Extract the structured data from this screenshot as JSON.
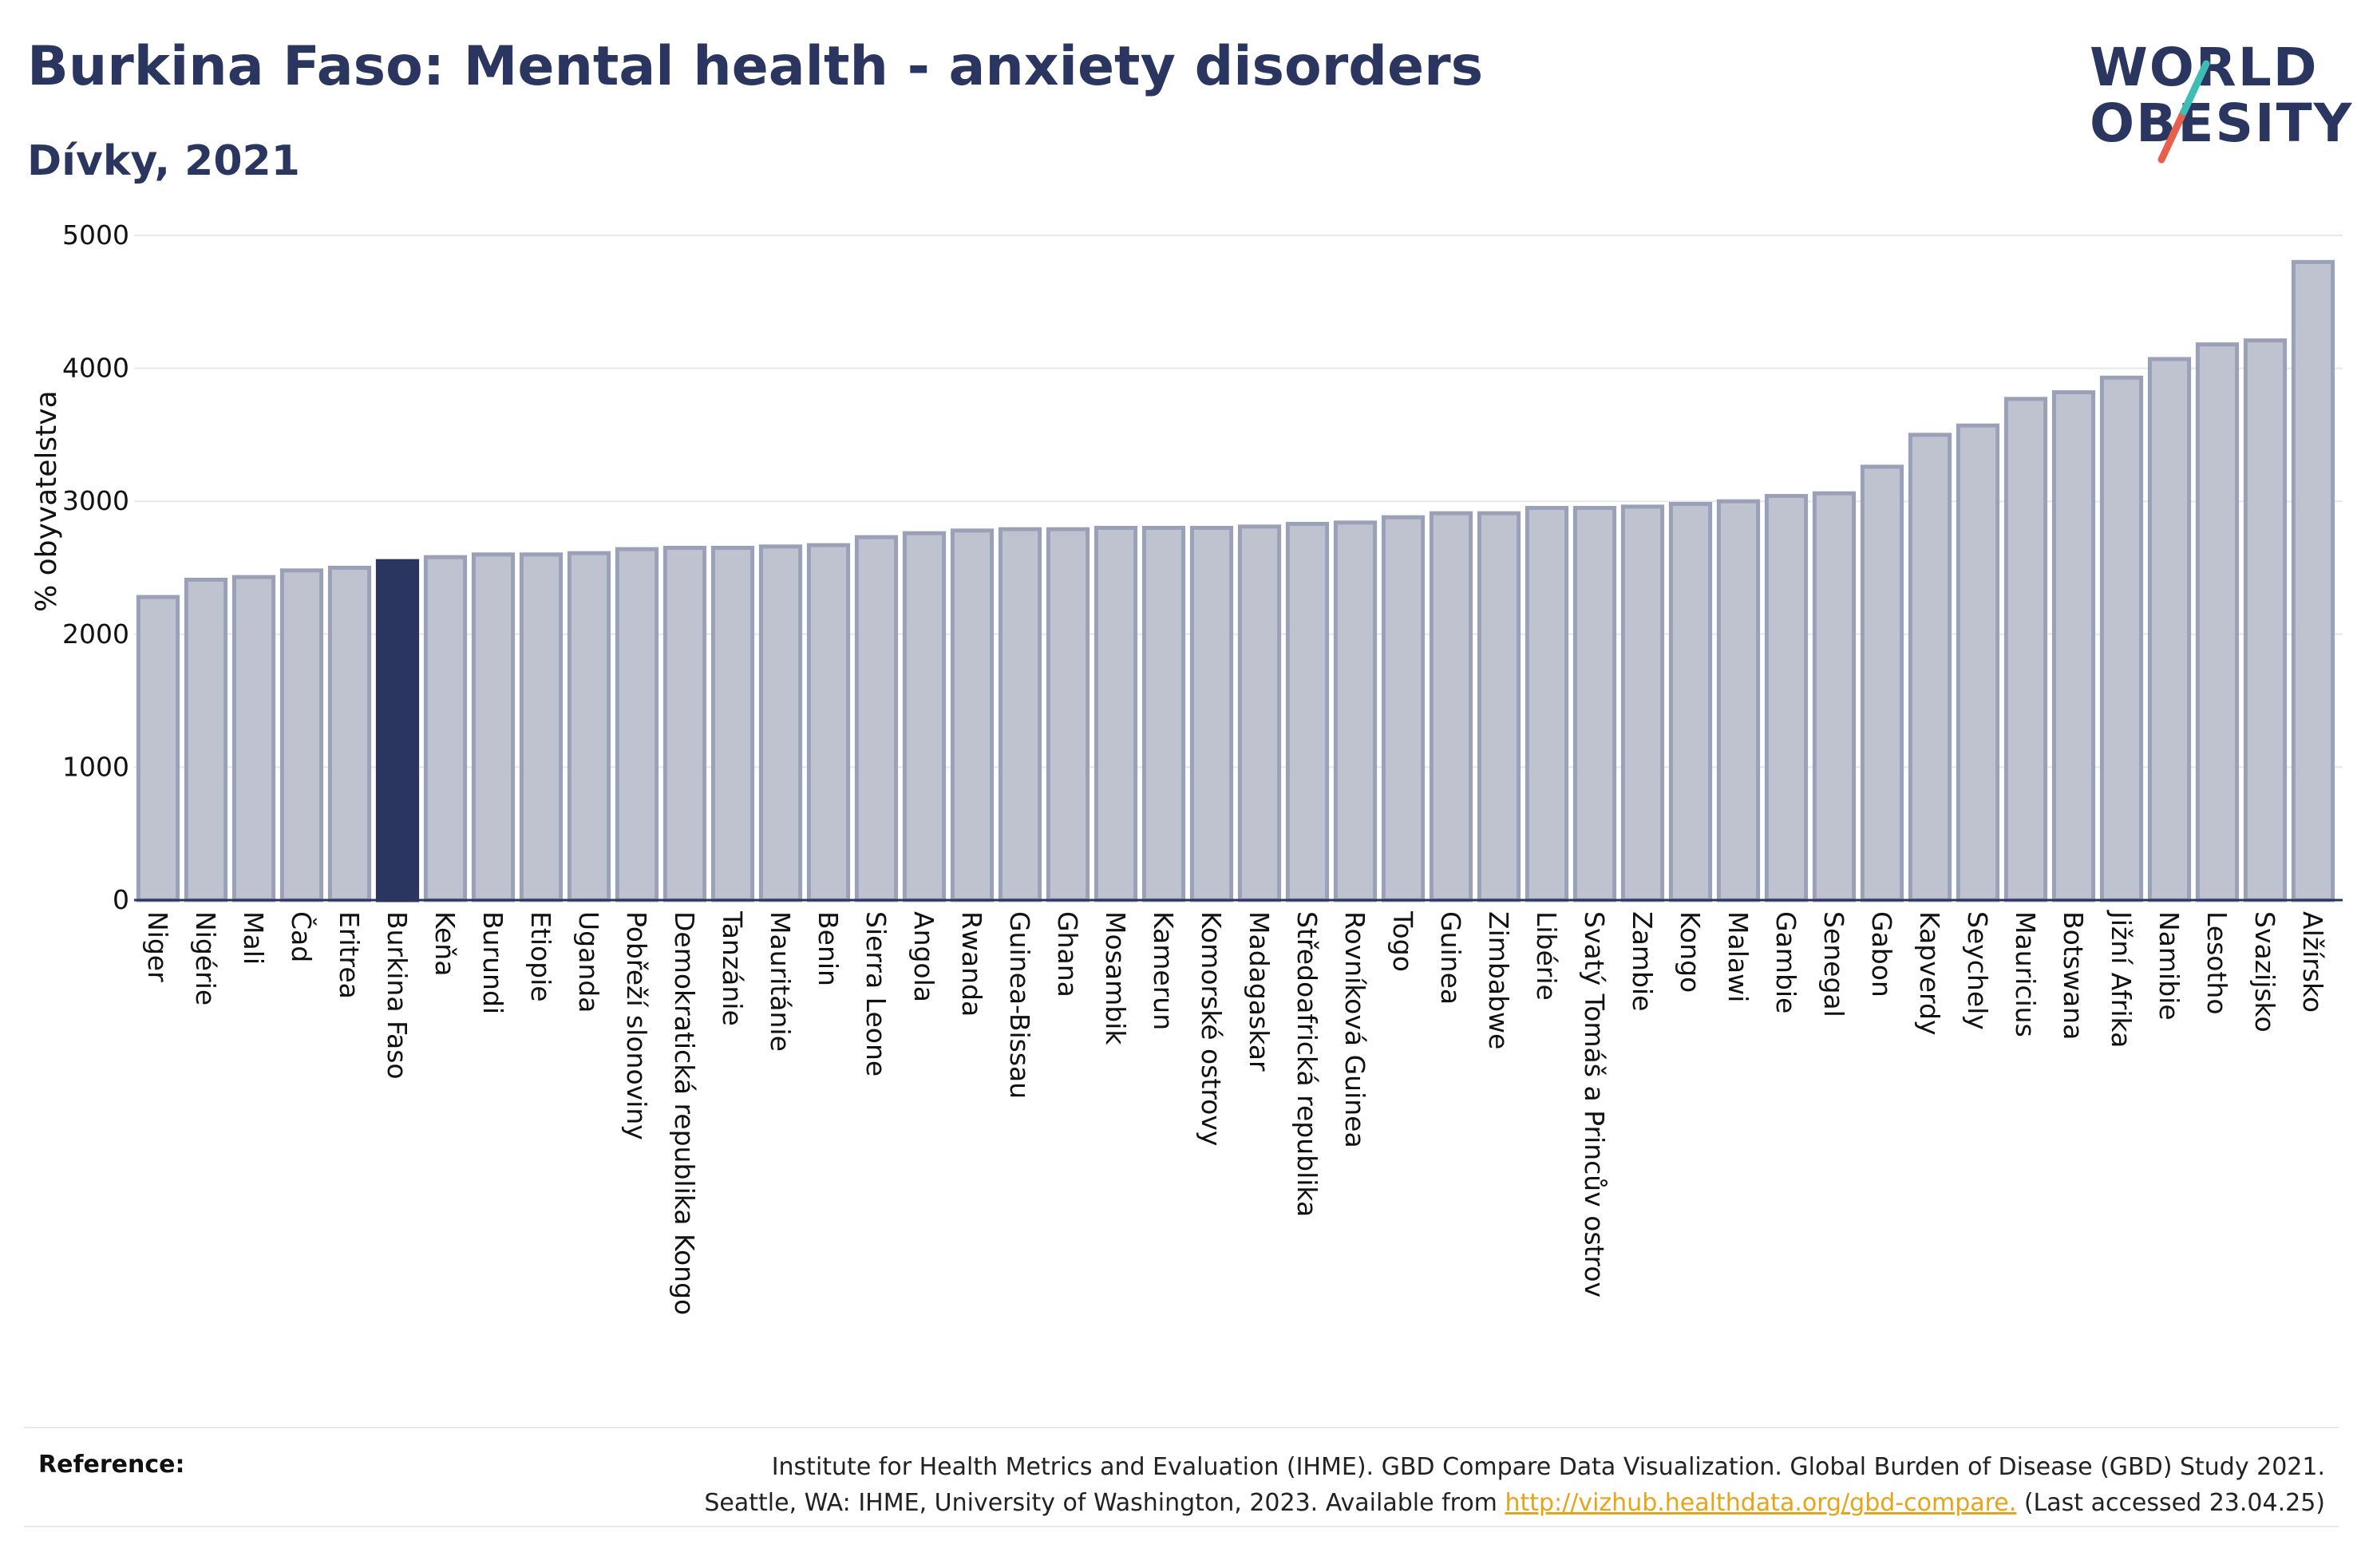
{
  "header": {
    "title": "Burkina Faso: Mental health - anxiety disorders",
    "subtitle": "Dívky, 2021"
  },
  "logo": {
    "line1": "WORLD",
    "line2": "OBESITY",
    "accent_colors": [
      "#3dbdb4",
      "#e8604c"
    ]
  },
  "chart_data": {
    "type": "bar",
    "title": "",
    "xlabel": "",
    "ylabel": "% obyvatelstva",
    "ylim": [
      0,
      5000
    ],
    "yticks": [
      0,
      1000,
      2000,
      3000,
      4000,
      5000
    ],
    "grid": true,
    "highlight": "Burkina Faso",
    "colors": {
      "bar": "#bfc3d0",
      "bar_edge": "#9aa0b8",
      "highlight": "#2b3660"
    },
    "categories": [
      "Niger",
      "Nigérie",
      "Mali",
      "Čad",
      "Eritrea",
      "Burkina Faso",
      "Keňa",
      "Burundi",
      "Etiopie",
      "Uganda",
      "Pobřeží slonoviny",
      "Demokratická republika Kongo",
      "Tanzánie",
      "Mauritánie",
      "Benin",
      "Sierra Leone",
      "Angola",
      "Rwanda",
      "Guinea-Bissau",
      "Ghana",
      "Mosambik",
      "Kamerun",
      "Komorské ostrovy",
      "Madagaskar",
      "Středoafrická republika",
      "Rovníková Guinea",
      "Togo",
      "Guinea",
      "Zimbabwe",
      "Libérie",
      "Svatý Tomáš a Princův ostrov",
      "Zambie",
      "Kongo",
      "Malawi",
      "Gambie",
      "Senegal",
      "Gabon",
      "Kapverdy",
      "Seychely",
      "Mauricius",
      "Botswana",
      "Jižní Afrika",
      "Namibie",
      "Lesotho",
      "Svazijsko",
      "Alžírsko"
    ],
    "values": [
      2280,
      2410,
      2430,
      2480,
      2500,
      2550,
      2580,
      2600,
      2600,
      2610,
      2640,
      2650,
      2650,
      2660,
      2670,
      2730,
      2760,
      2780,
      2790,
      2790,
      2800,
      2800,
      2800,
      2810,
      2830,
      2840,
      2880,
      2910,
      2910,
      2950,
      2950,
      2960,
      2980,
      3000,
      3040,
      3060,
      3260,
      3500,
      3570,
      3770,
      3820,
      3930,
      4070,
      4180,
      4210,
      4800
    ]
  },
  "reference": {
    "label": "Reference:",
    "line1": "Institute for Health Metrics and Evaluation (IHME). GBD Compare Data Visualization. Global Burden of Disease (GBD) Study 2021.",
    "line2_prefix": "Seattle, WA: IHME, University of Washington, 2023. Available from ",
    "link": "http://vizhub.healthdata.org/gbd-compare.",
    "line2_suffix": " (Last accessed 23.04.25)"
  }
}
